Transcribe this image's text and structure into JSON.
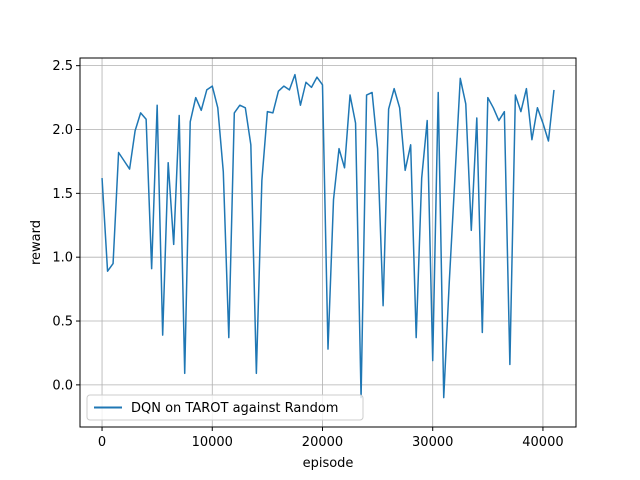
{
  "chart_data": {
    "type": "line",
    "xlabel": "episode",
    "ylabel": "reward",
    "xlim": [
      -2000,
      43000
    ],
    "ylim": [
      -0.33,
      2.56
    ],
    "xticks": [
      0,
      10000,
      20000,
      30000,
      40000
    ],
    "yticks": [
      0.0,
      0.5,
      1.0,
      1.5,
      2.0,
      2.5
    ],
    "xtick_labels": [
      "0",
      "10000",
      "20000",
      "30000",
      "40000"
    ],
    "ytick_labels": [
      "0.0",
      "0.5",
      "1.0",
      "1.5",
      "2.0",
      "2.5"
    ],
    "grid": true,
    "legend_position": "bottom-left",
    "series": [
      {
        "name": "DQN on TAROT against Random",
        "color": "#1f77b4",
        "x": [
          0,
          500,
          1000,
          1500,
          2500,
          3000,
          3500,
          4000,
          4500,
          5000,
          5500,
          6000,
          6500,
          7000,
          7500,
          8000,
          8500,
          9000,
          9500,
          10000,
          10500,
          11000,
          11500,
          12000,
          12500,
          13000,
          13500,
          14000,
          14500,
          15000,
          15500,
          16000,
          16500,
          17000,
          17500,
          18000,
          18500,
          19000,
          19500,
          20000,
          20500,
          21000,
          21500,
          22000,
          22500,
          23000,
          23500,
          24000,
          24500,
          25000,
          25500,
          26000,
          26500,
          27000,
          27500,
          28000,
          28500,
          29000,
          29500,
          30000,
          30500,
          31000,
          31500,
          32000,
          32500,
          33000,
          33500,
          34000,
          34500,
          35000,
          35500,
          36000,
          36500,
          37000,
          37500,
          38000,
          38500,
          39000,
          39500,
          40000,
          40500,
          41000
        ],
        "y": [
          1.62,
          0.89,
          0.95,
          1.82,
          1.69,
          1.99,
          2.13,
          2.08,
          0.91,
          2.19,
          0.39,
          1.74,
          1.1,
          2.11,
          0.09,
          2.06,
          2.25,
          2.15,
          2.31,
          2.34,
          2.17,
          1.67,
          0.37,
          2.13,
          2.19,
          2.17,
          1.88,
          0.09,
          1.6,
          2.14,
          2.13,
          2.3,
          2.34,
          2.31,
          2.43,
          2.19,
          2.37,
          2.33,
          2.41,
          2.35,
          0.28,
          1.45,
          1.85,
          1.7,
          2.27,
          2.05,
          -0.1,
          2.27,
          2.29,
          1.85,
          0.62,
          2.16,
          2.32,
          2.17,
          1.68,
          1.88,
          0.37,
          1.62,
          2.07,
          0.19,
          2.29,
          -0.1,
          0.8,
          1.6,
          2.4,
          2.2,
          1.21,
          2.09,
          0.41,
          2.25,
          2.17,
          2.07,
          2.14,
          0.16,
          2.27,
          2.14,
          2.32,
          1.92,
          2.17,
          2.05,
          1.91,
          2.31
        ]
      }
    ]
  }
}
